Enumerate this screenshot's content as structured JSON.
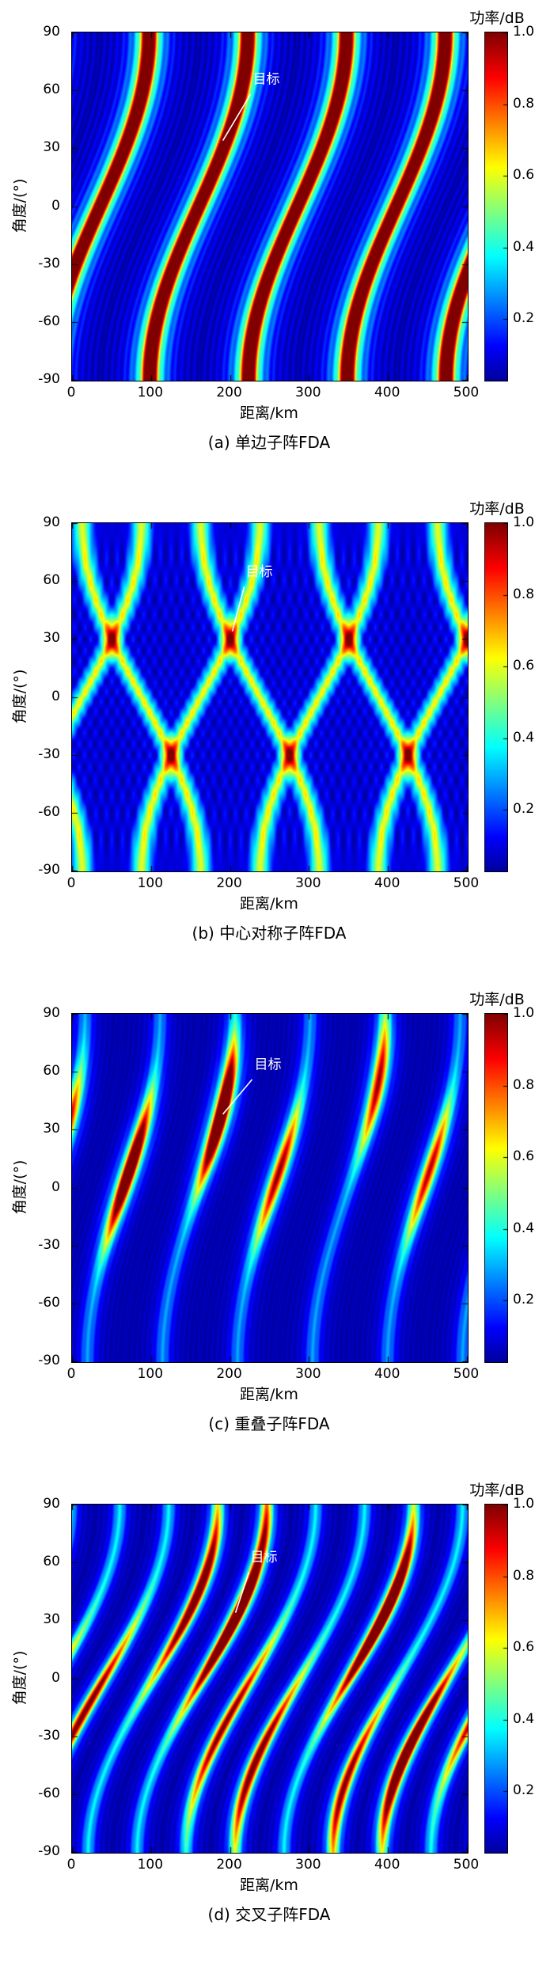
{
  "colors": {
    "background": "#ffffff",
    "axis": "#000000",
    "annotation_text": "#ffffff",
    "annotation_line": "#ffffff",
    "colormap": "jet",
    "colormap_low": "#00008f",
    "colormap_high": "#7f0000"
  },
  "chart_data": [
    {
      "id": "a",
      "type": "heatmap",
      "caption": "(a) 单边子阵FDA",
      "xlabel": "距离/km",
      "ylabel": "角度/(°)",
      "xlim": [
        0,
        500
      ],
      "ylim": [
        -90,
        90
      ],
      "x_ticks": [
        0,
        100,
        200,
        300,
        400,
        500
      ],
      "x_tick_labels": [
        "0",
        "100",
        "200",
        "300",
        "400",
        "500"
      ],
      "y_ticks": [
        90,
        60,
        30,
        0,
        -30,
        -60,
        -90
      ],
      "y_tick_labels": [
        "90",
        "60",
        "30",
        "0",
        "-30",
        "-60",
        "-90"
      ],
      "colorbar": {
        "title": "功率/dB",
        "tick_values": [
          1.0,
          0.8,
          0.6,
          0.4,
          0.2
        ],
        "tick_labels": [
          "1.0",
          "0.8",
          "0.6",
          "0.4",
          "0.2"
        ],
        "vmin": 0.03,
        "vmax": 1.0,
        "colormap": "jet"
      },
      "annotation": {
        "text": "目标",
        "text_xy": [
          246,
          66
        ],
        "line_from": [
          226,
          58
        ],
        "line_to": [
          191,
          34
        ]
      },
      "description": "S-shaped range-angle coupled beampattern: 4 curved diagonal stripes, red crest with green flanks, period ~125 km",
      "pattern": {
        "kind": "s-stripes",
        "period": 125,
        "sweep": 62,
        "offset": 35,
        "crest": 0.95,
        "crest_w": 9,
        "shoulder": 0.38,
        "shoulder_w": 23,
        "side_amp": 0.1,
        "side_period": 16
      }
    },
    {
      "id": "b",
      "type": "heatmap",
      "caption": "(b) 中心对称子阵FDA",
      "xlabel": "距离/km",
      "ylabel": "角度/(°)",
      "xlim": [
        0,
        500
      ],
      "ylim": [
        -90,
        90
      ],
      "x_ticks": [
        0,
        100,
        200,
        300,
        400,
        500
      ],
      "x_tick_labels": [
        "0",
        "100",
        "200",
        "300",
        "400",
        "500"
      ],
      "y_ticks": [
        90,
        60,
        30,
        0,
        -30,
        -60,
        -90
      ],
      "y_tick_labels": [
        "90",
        "60",
        "30",
        "0",
        "-30",
        "-60",
        "-90"
      ],
      "colorbar": {
        "title": "功率/dB",
        "tick_values": [
          1.0,
          0.8,
          0.6,
          0.4,
          0.2
        ],
        "tick_labels": [
          "1.0",
          "0.8",
          "0.6",
          "0.4",
          "0.2"
        ],
        "vmin": 0.03,
        "vmax": 1.0,
        "colormap": "jet"
      },
      "annotation": {
        "text": "目标",
        "text_xy": [
          237,
          65
        ],
        "line_from": [
          218,
          57
        ],
        "line_to": [
          203,
          34
        ]
      },
      "description": "Symmetric crossed beams forming diamond lattice; red hotspots at +30° (x≈50,200,350,500) and -30° (x≈125,275,425)",
      "pattern": {
        "kind": "cross-lattice",
        "period": 150,
        "sweep": 75,
        "offsetA": 12.5,
        "offsetB": 87.5,
        "line_amp": 0.5,
        "line_w": 11,
        "side_amp": 0.07,
        "side_period": 27
      }
    },
    {
      "id": "c",
      "type": "heatmap",
      "caption": "(c) 重叠子阵FDA",
      "xlabel": "距离/km",
      "ylabel": "角度/(°)",
      "xlim": [
        0,
        500
      ],
      "ylim": [
        -90,
        90
      ],
      "x_ticks": [
        0,
        100,
        200,
        300,
        400,
        500
      ],
      "x_tick_labels": [
        "0",
        "100",
        "200",
        "300",
        "400",
        "500"
      ],
      "y_ticks": [
        90,
        60,
        30,
        0,
        -30,
        -60,
        -90
      ],
      "y_tick_labels": [
        "90",
        "60",
        "30",
        "0",
        "-30",
        "-60",
        "-90"
      ],
      "colorbar": {
        "title": "功率/dB",
        "tick_values": [
          1.0,
          0.8,
          0.6,
          0.4,
          0.2
        ],
        "tick_labels": [
          "1.0",
          "0.8",
          "0.6",
          "0.4",
          "0.2"
        ],
        "vmin": 0.03,
        "vmax": 1.0,
        "colormap": "jet"
      },
      "annotation": {
        "text": "目标",
        "text_xy": [
          248,
          64
        ],
        "line_from": [
          228,
          56
        ],
        "line_to": [
          191,
          38
        ]
      },
      "description": "Overlapped-subarray FDA: faint steep stripes with localized bright segments mostly at upper angles, period ~95 km",
      "pattern": {
        "kind": "seg-stripes",
        "period": 95,
        "sweep": 46,
        "offset": 65,
        "seg_base": 0.16,
        "seg_amp": 0.92,
        "seg_w": 24,
        "th_min": 5,
        "th_span": 60,
        "crest_w": 8,
        "shoulder_w": 18,
        "seed": 7
      }
    },
    {
      "id": "d",
      "type": "heatmap",
      "caption": "(d) 交叉子阵FDA",
      "xlabel": "距离/km",
      "ylabel": "角度/(°)",
      "xlim": [
        0,
        500
      ],
      "ylim": [
        -90,
        90
      ],
      "x_ticks": [
        0,
        100,
        200,
        300,
        400,
        500
      ],
      "x_tick_labels": [
        "0",
        "100",
        "200",
        "300",
        "400",
        "500"
      ],
      "y_ticks": [
        90,
        60,
        30,
        0,
        -30,
        -60,
        -90
      ],
      "y_tick_labels": [
        "90",
        "60",
        "30",
        "0",
        "-30",
        "-60",
        "-90"
      ],
      "colorbar": {
        "title": "功率/dB",
        "tick_values": [
          1.0,
          0.8,
          0.6,
          0.4,
          0.2
        ],
        "tick_labels": [
          "1.0",
          "0.8",
          "0.6",
          "0.4",
          "0.2"
        ],
        "vmin": 0.03,
        "vmax": 1.0,
        "colormap": "jet"
      },
      "annotation": {
        "text": "目标",
        "text_xy": [
          243,
          63
        ],
        "line_from": [
          224,
          55
        ],
        "line_to": [
          207,
          34
        ]
      },
      "description": "Interleaved-subarray FDA: many steep curved stripes (~62 km period) with scattered bright red segments at various angles",
      "pattern": {
        "kind": "seg-stripes",
        "period": 62,
        "sweep": 82,
        "offset": 40,
        "seg_base": 0.22,
        "seg_amp": 0.92,
        "seg_w": 30,
        "th_min": -70,
        "th_span": 135,
        "crest_w": 7,
        "shoulder_w": 15,
        "seed": 13
      }
    }
  ]
}
